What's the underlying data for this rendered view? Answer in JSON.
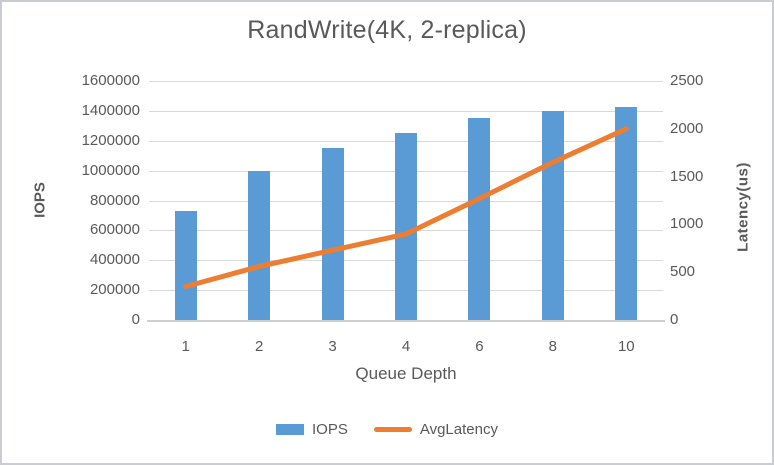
{
  "chart_data": {
    "type": "bar",
    "subtype": "combo-bar-line",
    "title": "RandWrite(4K, 2-replica)",
    "categories": [
      "1",
      "2",
      "3",
      "4",
      "6",
      "8",
      "10"
    ],
    "xlabel": "Queue Depth",
    "series": [
      {
        "name": "IOPS",
        "type": "bar",
        "axis": "left",
        "color": "#5b9bd5",
        "values": [
          730000,
          1000000,
          1150000,
          1250000,
          1350000,
          1400000,
          1425000
        ]
      },
      {
        "name": "AvgLatency",
        "type": "line",
        "axis": "right",
        "color": "#ed7d31",
        "values": [
          350,
          560,
          730,
          900,
          1270,
          1650,
          2000
        ]
      }
    ],
    "left_axis": {
      "label": "IOPS",
      "min": 0,
      "max": 1600000,
      "step": 200000,
      "ticks": [
        "1600000",
        "1400000",
        "1200000",
        "1000000",
        "800000",
        "600000",
        "400000",
        "200000",
        "0"
      ]
    },
    "right_axis": {
      "label": "Latency(us)",
      "min": 0,
      "max": 2500,
      "step": 500,
      "ticks": [
        "2500",
        "2000",
        "1500",
        "1000",
        "500",
        "0"
      ]
    },
    "grid": true,
    "legend_position": "bottom",
    "colors": {
      "bar": "#5b9bd5",
      "line": "#ed7d31",
      "gridline": "#d9d9d9",
      "axis_line": "#cfcfcf",
      "text": "#595959"
    }
  }
}
